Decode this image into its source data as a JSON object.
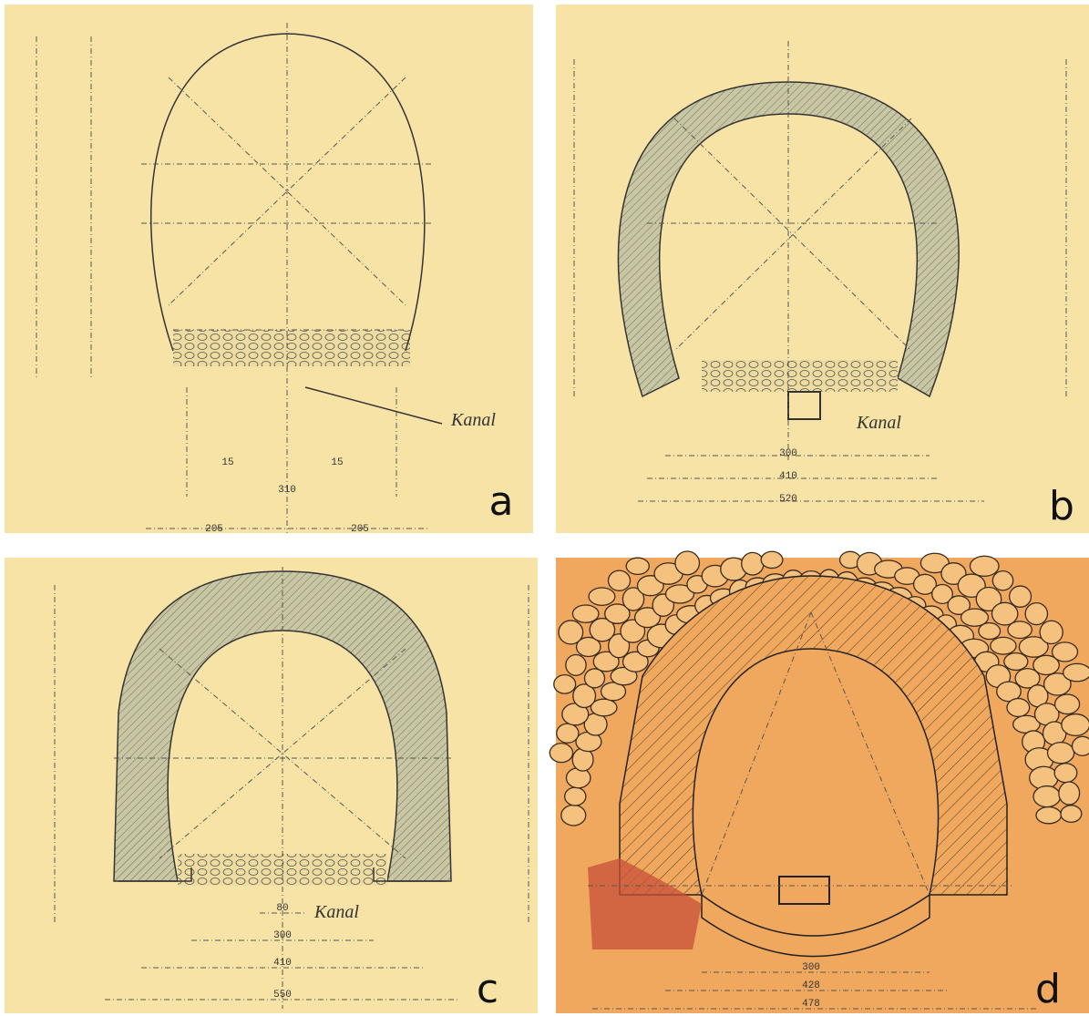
{
  "panels": [
    {
      "label": "a",
      "annotation": "Kanal",
      "dimensions": [
        "15",
        "15",
        "310",
        "205",
        "205"
      ]
    },
    {
      "label": "b",
      "annotation": "Kanal",
      "dimensions": [
        "300",
        "410",
        "520"
      ]
    },
    {
      "label": "c",
      "annotation": "Kanal",
      "dimensions": [
        "80",
        "300",
        "410",
        "550"
      ]
    },
    {
      "label": "d",
      "dimensions": [
        "300",
        "428",
        "478"
      ]
    }
  ]
}
